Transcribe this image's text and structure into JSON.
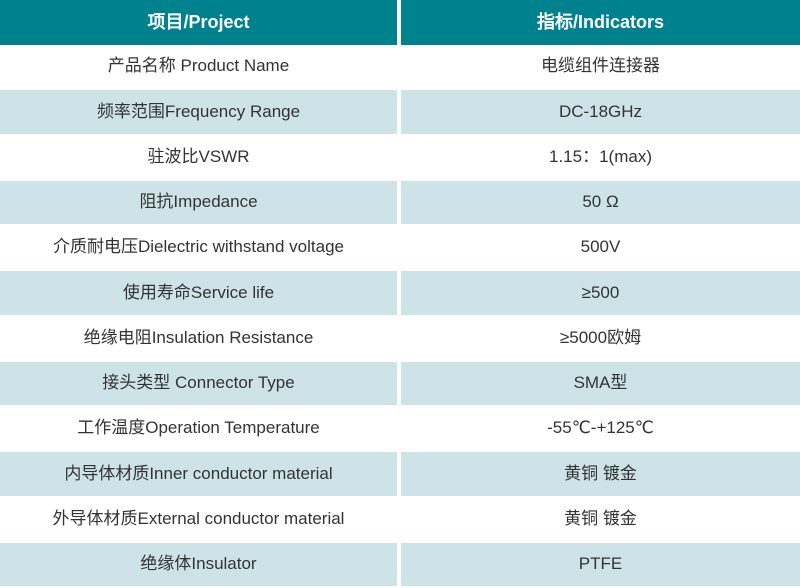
{
  "colors": {
    "header_bg": "#00818E",
    "header_text": "#FFFFFF",
    "row_bg": "#FFFFFF",
    "row_alt_bg": "#CDE3E8",
    "text": "#333333"
  },
  "table": {
    "header": {
      "project": "项目/Project",
      "indicators": "指标/Indicators"
    },
    "rows": [
      {
        "project": "产品名称 Product Name",
        "indicator": "电缆组件连接器"
      },
      {
        "project": "频率范围Frequency Range",
        "indicator": "DC-18GHz"
      },
      {
        "project": "驻波比VSWR",
        "indicator": "1.15：1(max)"
      },
      {
        "project": "阻抗Impedance",
        "indicator": "50 Ω"
      },
      {
        "project": "介质耐电压Dielectric withstand voltage",
        "indicator": "500V"
      },
      {
        "project": "使用寿命Service life",
        "indicator": "≥500"
      },
      {
        "project": "绝缘电阻Insulation Resistance",
        "indicator": "≥5000欧姆"
      },
      {
        "project": "接头类型 Connector Type",
        "indicator": "SMA型"
      },
      {
        "project": "工作温度Operation Temperature",
        "indicator": "-55℃-+125℃"
      },
      {
        "project": "内导体材质Inner conductor material",
        "indicator": "黄铜 镀金"
      },
      {
        "project": "外导体材质External conductor material",
        "indicator": "黄铜 镀金"
      },
      {
        "project": "绝缘体Insulator",
        "indicator": "PTFE"
      }
    ]
  }
}
